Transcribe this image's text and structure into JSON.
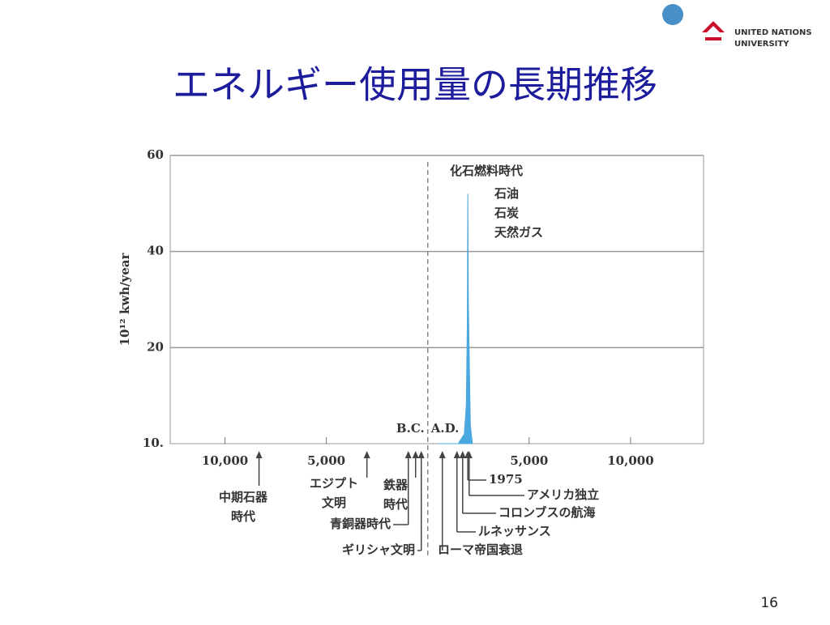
{
  "slide": {
    "title": "エネルギー使用量の長期推移",
    "page_number": "16",
    "logo": [
      "UNITED NATIONS",
      "UNIVERSITY"
    ]
  },
  "chart_data": {
    "type": "area",
    "y_label": "10¹² kwh/year",
    "x": [
      500,
      1500,
      1800,
      1900,
      1950,
      1975,
      2000,
      2100,
      2200
    ],
    "series": [
      {
        "name": "化石燃料時代",
        "color": "#4aa8e0",
        "values": [
          10,
          10,
          11,
          14,
          25,
          52,
          30,
          12,
          10
        ]
      }
    ],
    "series_notes": [
      "石油",
      "石炭",
      "天然ガス"
    ],
    "xlim": [
      -12700,
      13600
    ],
    "xticks": [
      {
        "value": -10000,
        "label": "10,000"
      },
      {
        "value": -5000,
        "label": "5,000"
      },
      {
        "value": 5000,
        "label": "5,000"
      },
      {
        "value": 10000,
        "label": "10,000"
      }
    ],
    "ylim": [
      10,
      60
    ],
    "yticks": [
      {
        "value": 10,
        "label": "10."
      },
      20,
      40,
      60
    ],
    "grid": true,
    "era_boundary": 0,
    "era_labels": [
      "B.C.",
      "A.D."
    ],
    "annotations": [
      {
        "x": -8320,
        "label": [
          "中期石器",
          "時代"
        ]
      },
      {
        "x": -3000,
        "label": [
          "エジプト",
          "文明"
        ]
      },
      {
        "x": -960,
        "label": [
          "青銅器時代"
        ]
      },
      {
        "x": -600,
        "label": [
          "鉄器",
          "時代"
        ]
      },
      {
        "x": -320,
        "label": [
          "ギリシャ文明"
        ]
      },
      {
        "x": 720,
        "label": [
          "ローマ帝国衰退"
        ]
      },
      {
        "x": 1440,
        "label": [
          "ルネッサンス"
        ]
      },
      {
        "x": 1720,
        "label": [
          "コロンブスの航海"
        ]
      },
      {
        "x": 2040,
        "label": [
          "アメリカ独立"
        ]
      },
      {
        "x": 1975,
        "label": [
          "1975"
        ]
      }
    ]
  }
}
